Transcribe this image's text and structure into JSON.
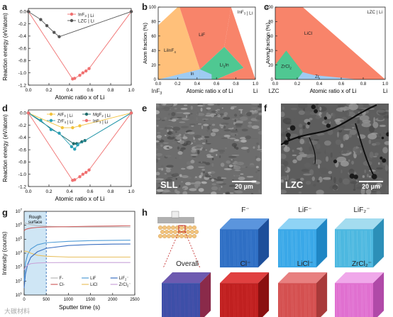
{
  "panels": {
    "a": "a",
    "b": "b",
    "c": "c",
    "d": "d",
    "e": "e",
    "f": "f",
    "g": "g",
    "h": "h"
  },
  "chart_data": [
    {
      "id": "a",
      "type": "line",
      "xlabel": "Atomic ratio x of Li",
      "ylabel": "Reaction energy (eV/atom)",
      "xlim": [
        0,
        1
      ],
      "ylim": [
        -1.2,
        0.05
      ],
      "xticks": [
        0.0,
        0.2,
        0.4,
        0.6,
        0.8,
        1.0
      ],
      "yticks": [
        0.0,
        -0.2,
        -0.4,
        -0.6,
        -0.8,
        -1.0,
        -1.2
      ],
      "legend_position": "top-center",
      "series": [
        {
          "name": "InF3 | Li",
          "color": "#f07070",
          "x": [
            0,
            0.43,
            0.45,
            0.5,
            0.53,
            0.56,
            0.59,
            1.0
          ],
          "y": [
            0,
            -1.1,
            -1.09,
            -1.04,
            -1.0,
            -0.97,
            -0.93,
            0
          ]
        },
        {
          "name": "LZC | Li",
          "color": "#555555",
          "x": [
            0,
            0.12,
            0.18,
            0.25,
            0.3,
            1.0
          ],
          "y": [
            0,
            -0.13,
            -0.23,
            -0.34,
            -0.41,
            0
          ]
        }
      ]
    },
    {
      "id": "b",
      "type": "area",
      "title": "InF3 | Li",
      "ylabel": "Atom fraction (%)",
      "xlabel": "Atomic ratio x of Li",
      "xticks": [
        0.0,
        0.2,
        0.4,
        0.6,
        0.8,
        1.0
      ],
      "yticks": [
        0,
        20,
        40,
        60,
        80,
        100
      ],
      "ylim": [
        0,
        100
      ],
      "left_label": "InF3",
      "right_label": "Li",
      "regions": [
        "LiInF4",
        "LiF",
        "In",
        "Li3In"
      ]
    },
    {
      "id": "c",
      "type": "area",
      "title": "LZC | Li",
      "ylabel": "Atom fraction (%)",
      "xlabel": "Atomic ratio x of Li",
      "xticks": [
        0.0,
        0.2,
        0.4,
        0.6,
        0.8,
        1.0
      ],
      "yticks": [
        0,
        20,
        40,
        60,
        80,
        100
      ],
      "ylim": [
        0,
        100
      ],
      "left_label": "LZC",
      "right_label": "Li",
      "regions": [
        "LiCl",
        "ZrCl2",
        "Zr"
      ]
    },
    {
      "id": "d",
      "type": "line",
      "xlabel": "Atomic ratio x of Li",
      "ylabel": "Reaction energy (eV/atom)",
      "xlim": [
        0,
        1
      ],
      "ylim": [
        -1.2,
        0.05
      ],
      "xticks": [
        0.0,
        0.2,
        0.4,
        0.6,
        0.8,
        1.0
      ],
      "yticks": [
        0.0,
        -0.2,
        -0.4,
        -0.6,
        -0.8,
        -1.0,
        -1.2
      ],
      "series": [
        {
          "name": "AlF3 | Li",
          "color": "#f2c23c",
          "x": [
            0,
            0.33,
            0.43,
            0.5,
            1.0
          ],
          "y": [
            0,
            -0.24,
            -0.24,
            -0.21,
            0
          ]
        },
        {
          "name": "MgF2 | Li",
          "color": "#1f6b6b",
          "x": [
            0,
            0.44,
            0.47,
            0.52,
            0.55,
            1.0
          ],
          "y": [
            0,
            -0.5,
            -0.5,
            -0.47,
            -0.45,
            0
          ]
        },
        {
          "name": "ZrF4 | Li",
          "color": "#2aa0b6",
          "x": [
            0,
            0.12,
            0.22,
            0.3,
            0.42,
            0.45,
            0.48,
            1.0
          ],
          "y": [
            0,
            -0.12,
            -0.27,
            -0.33,
            -0.55,
            -0.59,
            -0.52,
            0
          ]
        },
        {
          "name": "InF3 | Li",
          "color": "#f07070",
          "x": [
            0,
            0.43,
            0.45,
            0.5,
            0.53,
            0.56,
            0.59,
            1.0
          ],
          "y": [
            0,
            -1.1,
            -1.09,
            -1.04,
            -1.0,
            -0.97,
            -0.93,
            0
          ]
        }
      ]
    },
    {
      "id": "g",
      "type": "line",
      "xlabel": "Sputter time (s)",
      "ylabel": "Intensity (counts)",
      "xlim": [
        0,
        2500
      ],
      "ylim_log": [
        1,
        7
      ],
      "xticks": [
        0,
        500,
        1000,
        1500,
        2000,
        2500
      ],
      "yticks": [
        "10^1",
        "10^2",
        "10^3",
        "10^4",
        "10^5",
        "10^6",
        "10^7"
      ],
      "annotation": "Rough surface",
      "shaded_range": [
        0,
        500
      ],
      "series": [
        {
          "name": "F-",
          "color": "#b7b7b7",
          "x": [
            0,
            30,
            80,
            150,
            300,
            500,
            1000,
            1500,
            2000,
            2400
          ],
          "y": [
            6.2,
            6.15,
            6.1,
            6.05,
            5.98,
            5.93,
            5.88,
            5.87,
            5.87,
            5.87
          ]
        },
        {
          "name": "Cl-",
          "color": "#d06060",
          "x": [
            0,
            30,
            80,
            150,
            300,
            500,
            1000,
            1500,
            2000,
            2400
          ],
          "y": [
            5.6,
            5.7,
            5.75,
            5.8,
            5.85,
            5.88,
            5.9,
            5.93,
            5.95,
            5.97
          ]
        },
        {
          "name": "LiF",
          "color": "#4f9bd6",
          "x": [
            0,
            30,
            80,
            150,
            300,
            500,
            1000,
            1500,
            2000,
            2400
          ],
          "y": [
            2.0,
            3.3,
            3.9,
            4.3,
            4.6,
            4.75,
            4.85,
            4.9,
            4.92,
            4.93
          ]
        },
        {
          "name": "LiCl",
          "color": "#e8c060",
          "x": [
            0,
            30,
            80,
            150,
            300,
            500,
            1000,
            1500,
            2000,
            2400
          ],
          "y": [
            4.1,
            4.15,
            4.1,
            4.0,
            3.85,
            3.78,
            3.72,
            3.72,
            3.72,
            3.72
          ]
        },
        {
          "name": "LiF2-",
          "color": "#3a6fc0",
          "x": [
            0,
            30,
            80,
            150,
            300,
            500,
            1000,
            1500,
            2000,
            2400
          ],
          "y": [
            1.5,
            2.5,
            3.2,
            3.7,
            4.1,
            4.35,
            4.55,
            4.62,
            4.65,
            4.66
          ]
        },
        {
          "name": "ZrCl2-",
          "color": "#c9a4d8",
          "x": [
            0,
            30,
            80,
            150,
            300,
            500,
            1000,
            1500,
            2000,
            2400
          ],
          "y": [
            2.8,
            3.0,
            3.15,
            3.25,
            3.3,
            3.32,
            3.33,
            3.33,
            3.33,
            3.33
          ]
        }
      ]
    }
  ],
  "micro": {
    "e": {
      "label": "SLL",
      "scale": "20 µm"
    },
    "f": {
      "label": "LZC",
      "scale": "20 µm"
    }
  },
  "cubes": {
    "titles": [
      "F⁻",
      "LiF⁻",
      "LiF₂⁻",
      "Overall",
      "Cl⁻",
      "LiCl⁻",
      "ZrCl₂⁻"
    ],
    "colors": {
      "F": "#2f6fc4",
      "LiF": "#3aa8e8",
      "LiF2": "#4db8e0",
      "Cl": "#c02020",
      "LiCl": "#d45050",
      "ZrCl2": "#e070d0"
    }
  },
  "watermark": "大碳材料"
}
